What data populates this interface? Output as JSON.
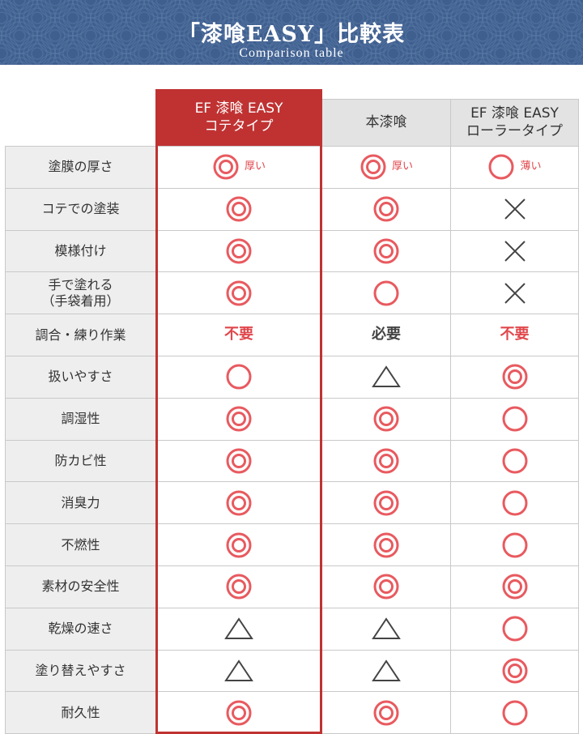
{
  "banner": {
    "title": "「漆喰EASY」比較表",
    "subtitle": "Comparison table"
  },
  "colors": {
    "accent": "#c03232",
    "symbol": "#e85a5f",
    "header_bg": "#e3e3e3",
    "label_bg": "#eeeeee",
    "banner_bg": "#3f5f8f"
  },
  "columns": [
    {
      "line1": "EF 漆喰 EASY",
      "line2": "コテタイプ"
    },
    {
      "line1": "本漆喰",
      "line2": ""
    },
    {
      "line1": "EF 漆喰 EASY",
      "line2": "ローラータイプ"
    }
  ],
  "rows": [
    {
      "label": "塗膜の厚さ",
      "label2": "",
      "cells": [
        {
          "s": "double-circle",
          "note": "厚い"
        },
        {
          "s": "double-circle",
          "note": "厚い"
        },
        {
          "s": "circle",
          "note": "薄い"
        }
      ]
    },
    {
      "label": "コテでの塗装",
      "label2": "",
      "cells": [
        {
          "s": "double-circle"
        },
        {
          "s": "double-circle"
        },
        {
          "s": "cross"
        }
      ]
    },
    {
      "label": "模様付け",
      "label2": "",
      "cells": [
        {
          "s": "double-circle"
        },
        {
          "s": "double-circle"
        },
        {
          "s": "cross"
        }
      ]
    },
    {
      "label": "手で塗れる",
      "label2": "（手袋着用）",
      "cells": [
        {
          "s": "double-circle"
        },
        {
          "s": "circle"
        },
        {
          "s": "cross"
        }
      ]
    },
    {
      "label": "調合・練り作業",
      "label2": "",
      "cells": [
        {
          "s": "text-red",
          "text": "不要"
        },
        {
          "s": "text-dark",
          "text": "必要"
        },
        {
          "s": "text-red",
          "text": "不要"
        }
      ]
    },
    {
      "label": "扱いやすさ",
      "label2": "",
      "cells": [
        {
          "s": "circle"
        },
        {
          "s": "triangle"
        },
        {
          "s": "double-circle"
        }
      ]
    },
    {
      "label": "調湿性",
      "label2": "",
      "cells": [
        {
          "s": "double-circle"
        },
        {
          "s": "double-circle"
        },
        {
          "s": "circle"
        }
      ]
    },
    {
      "label": "防カビ性",
      "label2": "",
      "cells": [
        {
          "s": "double-circle"
        },
        {
          "s": "double-circle"
        },
        {
          "s": "circle"
        }
      ]
    },
    {
      "label": "消臭力",
      "label2": "",
      "cells": [
        {
          "s": "double-circle"
        },
        {
          "s": "double-circle"
        },
        {
          "s": "circle"
        }
      ]
    },
    {
      "label": "不燃性",
      "label2": "",
      "cells": [
        {
          "s": "double-circle"
        },
        {
          "s": "double-circle"
        },
        {
          "s": "circle"
        }
      ]
    },
    {
      "label": "素材の安全性",
      "label2": "",
      "cells": [
        {
          "s": "double-circle"
        },
        {
          "s": "double-circle"
        },
        {
          "s": "double-circle"
        }
      ]
    },
    {
      "label": "乾燥の速さ",
      "label2": "",
      "cells": [
        {
          "s": "triangle"
        },
        {
          "s": "triangle"
        },
        {
          "s": "circle"
        }
      ]
    },
    {
      "label": "塗り替えやすさ",
      "label2": "",
      "cells": [
        {
          "s": "triangle"
        },
        {
          "s": "triangle"
        },
        {
          "s": "double-circle"
        }
      ]
    },
    {
      "label": "耐久性",
      "label2": "",
      "cells": [
        {
          "s": "double-circle"
        },
        {
          "s": "double-circle"
        },
        {
          "s": "circle"
        }
      ]
    }
  ]
}
